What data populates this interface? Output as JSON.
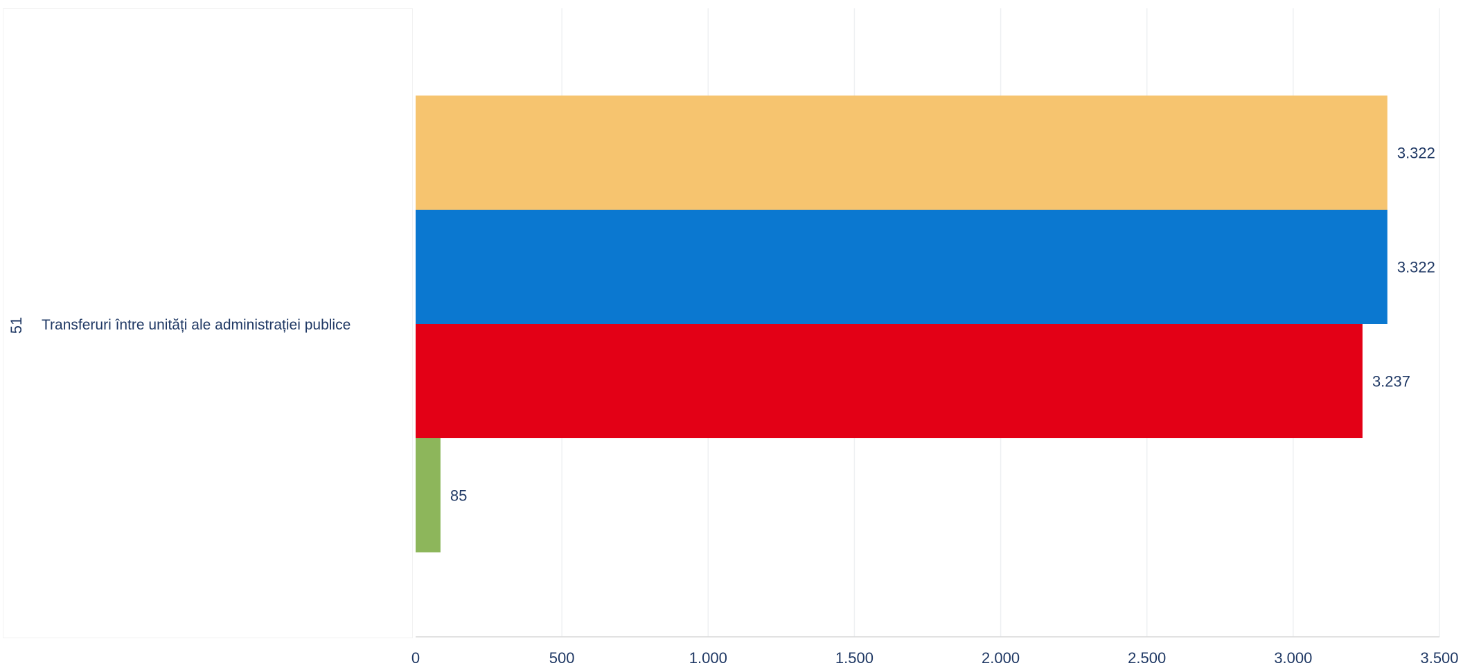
{
  "chart_data": {
    "type": "bar",
    "orientation": "horizontal",
    "category": {
      "code": "51",
      "label": "Transferuri între unități ale administrației publice"
    },
    "series": [
      {
        "value": 3322,
        "display": "3.322",
        "color": "#f6c46f"
      },
      {
        "value": 3322,
        "display": "3.322",
        "color": "#0b78d0"
      },
      {
        "value": 3237,
        "display": "3.237",
        "color": "#e30016"
      },
      {
        "value": 85,
        "display": "85",
        "color": "#8db65b"
      }
    ],
    "xlim": [
      0,
      3500
    ],
    "ticks": [
      {
        "value": 0,
        "label": "0"
      },
      {
        "value": 500,
        "label": "500"
      },
      {
        "value": 1000,
        "label": "1.000"
      },
      {
        "value": 1500,
        "label": "1.500"
      },
      {
        "value": 2000,
        "label": "2.000"
      },
      {
        "value": 2500,
        "label": "2.500"
      },
      {
        "value": 3000,
        "label": "3.000"
      },
      {
        "value": 3500,
        "label": "3.500"
      }
    ],
    "grid": true,
    "legend": "none"
  }
}
